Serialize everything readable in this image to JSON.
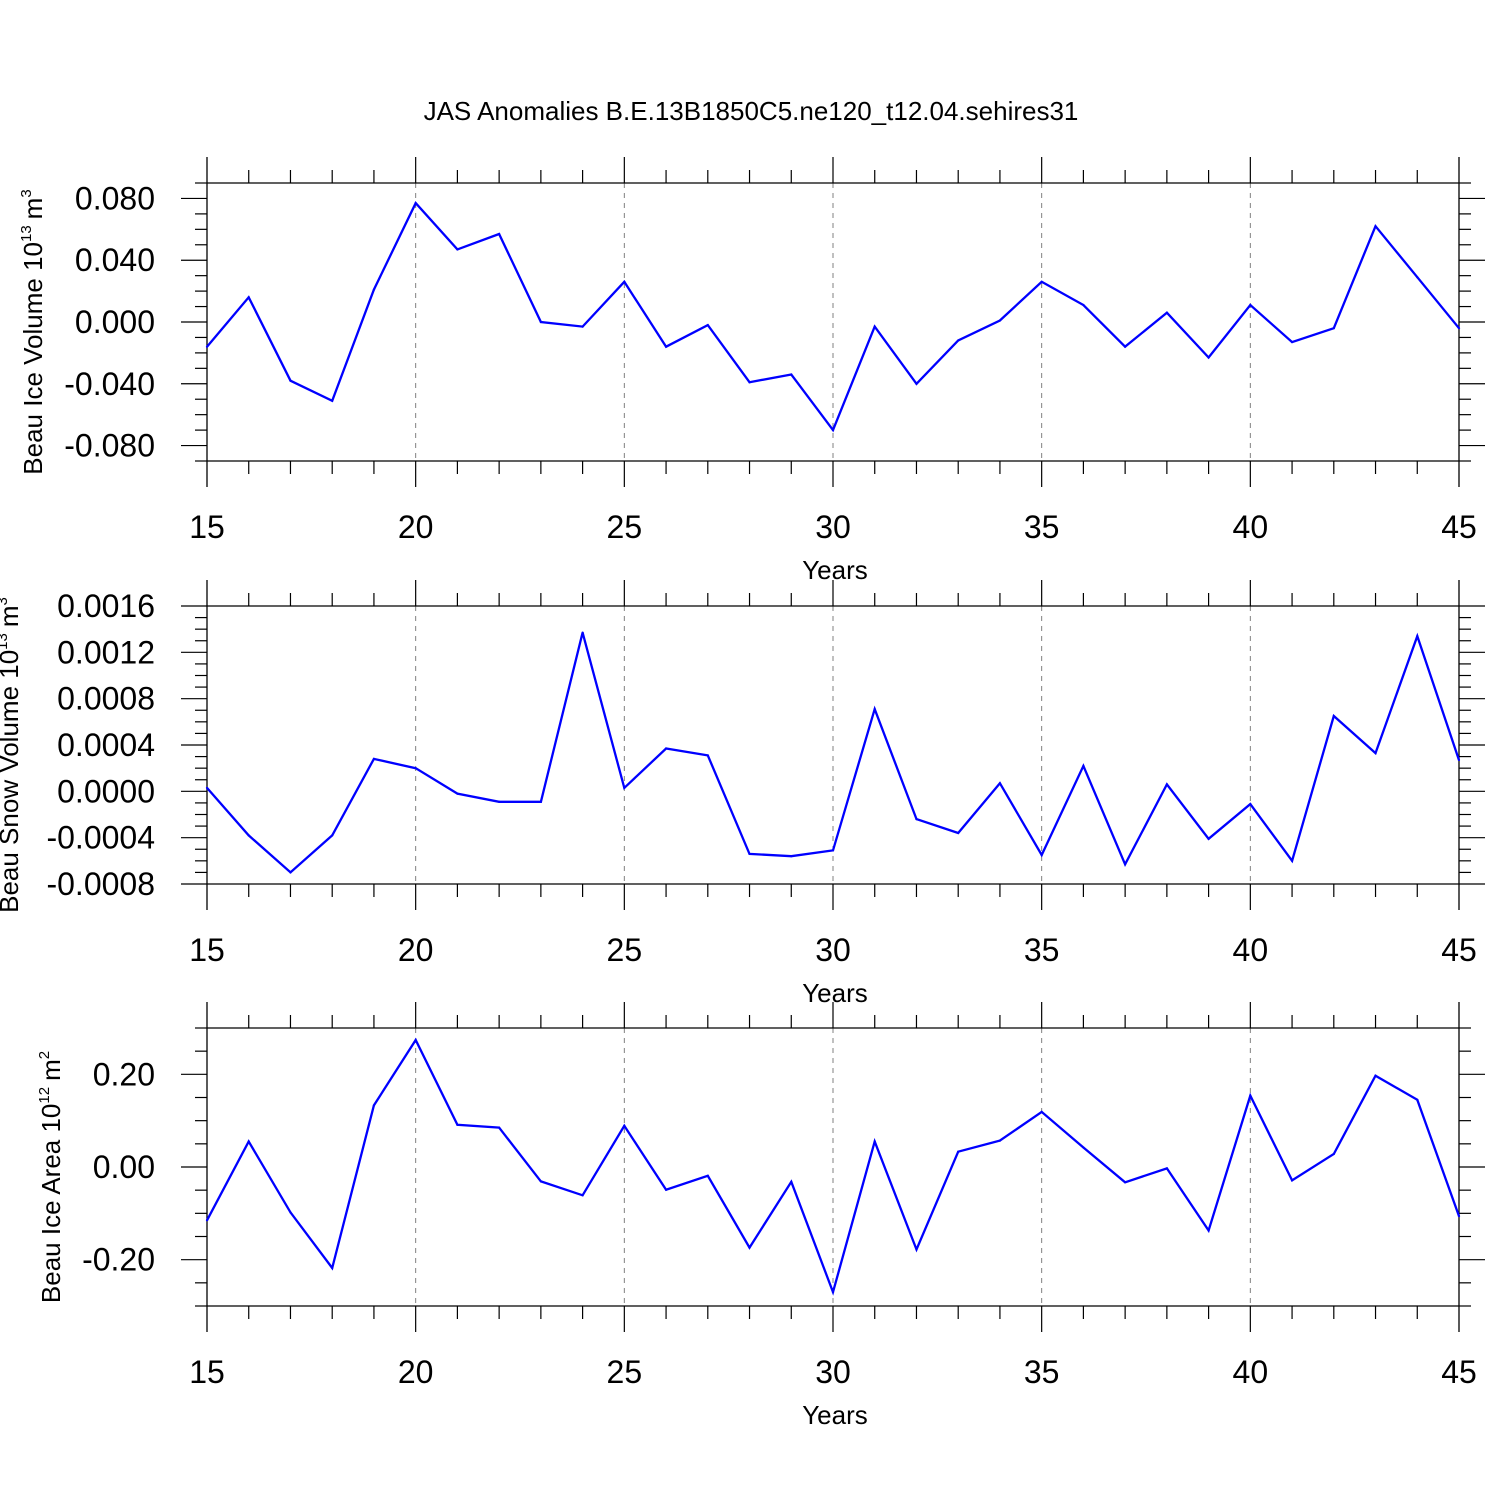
{
  "title": "JAS Anomalies B.E.13B1850C5.ne120_t12.04.sehires31",
  "colors": {
    "line": "#0000ff",
    "axis": "#000000",
    "grid": "#808080"
  },
  "chart_data": [
    {
      "type": "line",
      "xlabel": "Years",
      "ylabel_text": "Beau Ice Volume 10",
      "ylabel_sup": "13",
      "ylabel_unit": "m",
      "ylabel_unit_sup": "3",
      "xlim": [
        15,
        45
      ],
      "ylim": [
        -0.09,
        0.09
      ],
      "x_ticks": [
        15,
        20,
        25,
        30,
        35,
        40,
        45
      ],
      "x_tick_labels": [
        "15",
        "20",
        "25",
        "30",
        "35",
        "40",
        "45"
      ],
      "y_ticks": [
        0.08,
        0.04,
        0.0,
        -0.04,
        -0.08
      ],
      "y_tick_labels": [
        "0.080",
        "0.040",
        "0.000",
        "-0.040",
        "-0.080"
      ],
      "y_minor_step": 0.01,
      "x": [
        15,
        16,
        17,
        18,
        19,
        20,
        21,
        22,
        23,
        24,
        25,
        26,
        27,
        28,
        29,
        30,
        31,
        32,
        33,
        34,
        35,
        36,
        37,
        38,
        39,
        40,
        41,
        42,
        43,
        44,
        45
      ],
      "values": [
        -0.016,
        0.016,
        -0.038,
        -0.051,
        0.021,
        0.077,
        0.047,
        0.057,
        0.0,
        -0.003,
        0.026,
        -0.016,
        -0.002,
        -0.039,
        -0.034,
        -0.07,
        -0.003,
        -0.04,
        -0.012,
        0.001,
        0.026,
        0.011,
        -0.016,
        0.006,
        -0.023,
        0.011,
        -0.013,
        -0.004,
        0.062,
        0.029,
        -0.004
      ]
    },
    {
      "type": "line",
      "xlabel": "Years",
      "ylabel_text": "Beau Snow Volume 10",
      "ylabel_sup": "13",
      "ylabel_unit": "m",
      "ylabel_unit_sup": "3",
      "xlim": [
        15,
        45
      ],
      "ylim": [
        -0.0008,
        0.0016
      ],
      "x_ticks": [
        15,
        20,
        25,
        30,
        35,
        40,
        45
      ],
      "x_tick_labels": [
        "15",
        "20",
        "25",
        "30",
        "35",
        "40",
        "45"
      ],
      "y_ticks": [
        0.0016,
        0.0012,
        0.0008,
        0.0004,
        0.0,
        -0.0004,
        -0.0008
      ],
      "y_tick_labels": [
        "0.0016",
        "0.0012",
        "0.0008",
        "0.0004",
        "0.0000",
        "-0.0004",
        "-0.0008"
      ],
      "y_minor_step": 0.0001,
      "x": [
        15,
        16,
        17,
        18,
        19,
        20,
        21,
        22,
        23,
        24,
        25,
        26,
        27,
        28,
        29,
        30,
        31,
        32,
        33,
        34,
        35,
        36,
        37,
        38,
        39,
        40,
        41,
        42,
        43,
        44,
        45
      ],
      "values": [
        3e-05,
        -0.00038,
        -0.0007,
        -0.00038,
        0.00028,
        0.0002,
        -2e-05,
        -9e-05,
        -9e-05,
        0.00137,
        3e-05,
        0.00037,
        0.00031,
        -0.00054,
        -0.00056,
        -0.00051,
        0.00071,
        -0.00024,
        -0.00036,
        7e-05,
        -0.00055,
        0.00022,
        -0.00063,
        6e-05,
        -0.00041,
        -0.00011,
        -0.0006,
        0.00065,
        0.00033,
        0.00134,
        0.00027
      ]
    },
    {
      "type": "line",
      "xlabel": "Years",
      "ylabel_text": "Beau Ice Area 10",
      "ylabel_sup": "12",
      "ylabel_unit": "m",
      "ylabel_unit_sup": "2",
      "xlim": [
        15,
        45
      ],
      "ylim": [
        -0.3,
        0.3
      ],
      "x_ticks": [
        15,
        20,
        25,
        30,
        35,
        40,
        45
      ],
      "x_tick_labels": [
        "15",
        "20",
        "25",
        "30",
        "35",
        "40",
        "45"
      ],
      "y_ticks": [
        0.2,
        0.0,
        -0.2
      ],
      "y_tick_labels": [
        "0.20",
        "0.00",
        "-0.20"
      ],
      "y_minor_step": 0.05,
      "x": [
        15,
        16,
        17,
        18,
        19,
        20,
        21,
        22,
        23,
        24,
        25,
        26,
        27,
        28,
        29,
        30,
        31,
        32,
        33,
        34,
        35,
        36,
        37,
        38,
        39,
        40,
        41,
        42,
        43,
        44,
        45
      ],
      "values": [
        -0.115,
        0.055,
        -0.098,
        -0.218,
        0.133,
        0.274,
        0.091,
        0.085,
        -0.031,
        -0.061,
        0.089,
        -0.049,
        -0.019,
        -0.174,
        -0.032,
        -0.27,
        0.055,
        -0.178,
        0.033,
        0.057,
        0.119,
        0.042,
        -0.033,
        -0.003,
        -0.137,
        0.154,
        -0.029,
        0.028,
        0.197,
        0.145,
        -0.106
      ]
    }
  ]
}
